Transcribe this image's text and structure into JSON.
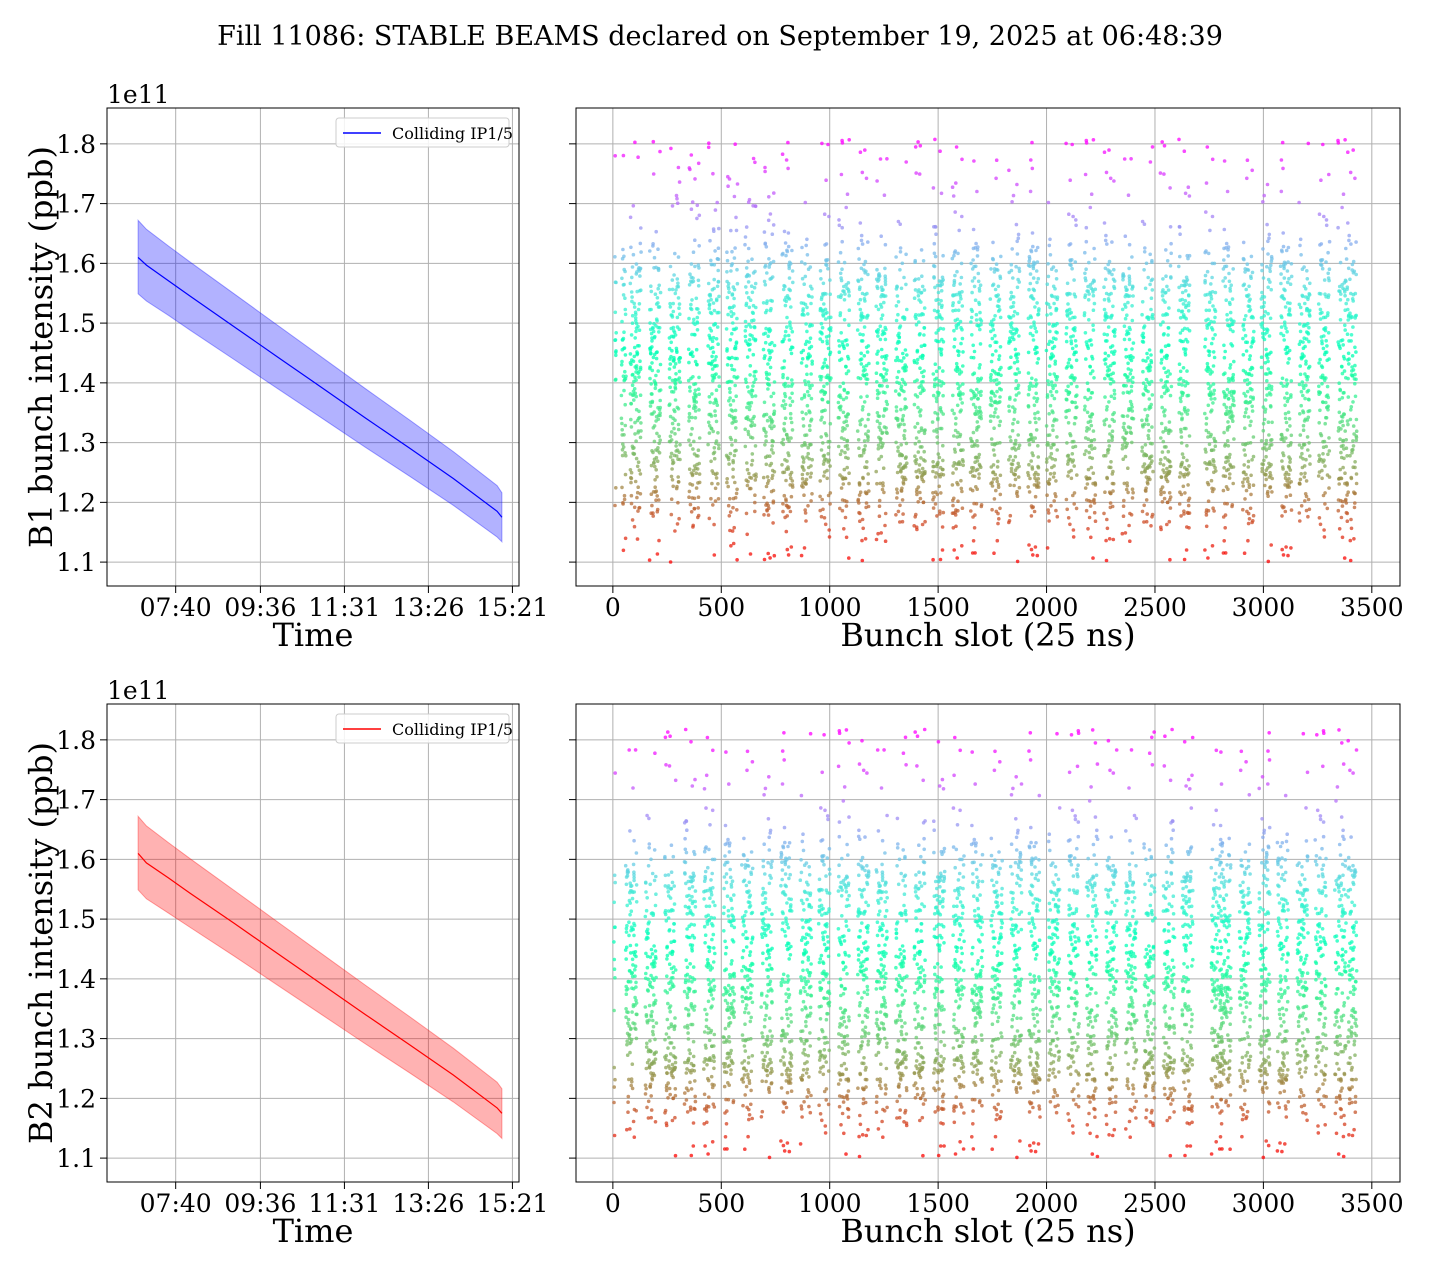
{
  "title": "Fill 11086: STABLE BEAMS declared on September 19, 2025 at 06:48:39",
  "chart_data": [
    {
      "id": "b1-time",
      "type": "line",
      "xlabel": "Time",
      "ylabel": "B1 bunch intensity (ppb)",
      "y_offset_label": "1e11",
      "xticks": [
        "07:40",
        "09:36",
        "11:31",
        "13:26",
        "15:21"
      ],
      "x_hours_at_ticks": [
        7.667,
        9.6,
        11.517,
        13.433,
        15.35
      ],
      "xlim_hours": [
        6.1,
        15.5
      ],
      "yticks": [
        "1.1",
        "1.2",
        "1.3",
        "1.4",
        "1.5",
        "1.6",
        "1.7",
        "1.8"
      ],
      "ylim": [
        1.06,
        1.86
      ],
      "grid": true,
      "legend": {
        "placement": "top-right",
        "entries": [
          "Colliding IP1/5"
        ]
      },
      "color": "#0000ff",
      "series": [
        {
          "name": "Colliding IP1/5",
          "x_hours": [
            6.81,
            7.0,
            7.5,
            8.0,
            9.0,
            10.0,
            11.0,
            12.0,
            13.0,
            14.0,
            15.0,
            15.11
          ],
          "mean": [
            1.61,
            1.597,
            1.571,
            1.545,
            1.494,
            1.443,
            1.392,
            1.341,
            1.291,
            1.24,
            1.185,
            1.175
          ],
          "band_upper": [
            1.672,
            1.657,
            1.629,
            1.602,
            1.549,
            1.496,
            1.443,
            1.39,
            1.338,
            1.285,
            1.228,
            1.216
          ],
          "band_lower": [
            1.549,
            1.537,
            1.513,
            1.488,
            1.439,
            1.39,
            1.341,
            1.292,
            1.244,
            1.195,
            1.142,
            1.134
          ]
        }
      ]
    },
    {
      "id": "b1-slot",
      "type": "scatter",
      "xlabel": "Bunch slot (25 ns)",
      "ylabel": "",
      "xticks": [
        "0",
        "500",
        "1000",
        "1500",
        "2000",
        "2500",
        "3000",
        "3500"
      ],
      "xlim": [
        -170,
        3630
      ],
      "ylim": [
        1.06,
        1.86
      ],
      "grid": true,
      "colormap": "rainbow",
      "color_range": [
        1.1,
        1.8
      ],
      "y_band": [
        1.2,
        1.6
      ],
      "y_spread": 0.05,
      "y_max": 1.81,
      "y_min": 1.1,
      "trains": [
        [
          10,
          15
        ],
        [
          40,
          60
        ],
        [
          80,
          130
        ],
        [
          170,
          220
        ],
        [
          260,
          310
        ],
        [
          350,
          400
        ],
        [
          440,
          490
        ],
        [
          525,
          575
        ],
        [
          610,
          660
        ],
        [
          695,
          745
        ],
        [
          780,
          830
        ],
        [
          870,
          920
        ],
        [
          955,
          1005
        ],
        [
          1040,
          1090
        ],
        [
          1130,
          1180
        ],
        [
          1215,
          1265
        ],
        [
          1305,
          1355
        ],
        [
          1390,
          1440
        ],
        [
          1475,
          1525
        ],
        [
          1565,
          1615
        ],
        [
          1650,
          1700
        ],
        [
          1740,
          1790
        ],
        [
          1825,
          1875
        ],
        [
          1915,
          1965
        ],
        [
          2000,
          2050
        ],
        [
          2090,
          2140
        ],
        [
          2175,
          2225
        ],
        [
          2265,
          2315
        ],
        [
          2350,
          2400
        ],
        [
          2440,
          2490
        ],
        [
          2525,
          2575
        ],
        [
          2610,
          2660
        ],
        [
          2730,
          2780
        ],
        [
          2815,
          2865
        ],
        [
          2905,
          2955
        ],
        [
          2990,
          3040
        ],
        [
          3080,
          3130
        ],
        [
          3165,
          3215
        ],
        [
          3255,
          3305
        ],
        [
          3345,
          3395
        ],
        [
          3400,
          3430
        ]
      ]
    },
    {
      "id": "b2-time",
      "type": "line",
      "xlabel": "Time",
      "ylabel": "B2 bunch intensity (ppb)",
      "y_offset_label": "1e11",
      "xticks": [
        "07:40",
        "09:36",
        "11:31",
        "13:26",
        "15:21"
      ],
      "x_hours_at_ticks": [
        7.667,
        9.6,
        11.517,
        13.433,
        15.35
      ],
      "xlim_hours": [
        6.1,
        15.5
      ],
      "yticks": [
        "1.1",
        "1.2",
        "1.3",
        "1.4",
        "1.5",
        "1.6",
        "1.7",
        "1.8"
      ],
      "ylim": [
        1.06,
        1.86
      ],
      "grid": true,
      "legend": {
        "placement": "top-right",
        "entries": [
          "Colliding IP1/5"
        ]
      },
      "color": "#ff0000",
      "series": [
        {
          "name": "Colliding IP1/5",
          "x_hours": [
            6.81,
            7.0,
            7.5,
            8.0,
            9.0,
            10.0,
            11.0,
            12.0,
            13.0,
            14.0,
            15.0,
            15.11
          ],
          "mean": [
            1.61,
            1.594,
            1.569,
            1.543,
            1.493,
            1.442,
            1.391,
            1.34,
            1.29,
            1.239,
            1.184,
            1.175
          ],
          "band_upper": [
            1.672,
            1.656,
            1.628,
            1.601,
            1.548,
            1.495,
            1.442,
            1.389,
            1.337,
            1.284,
            1.227,
            1.216
          ],
          "band_lower": [
            1.549,
            1.534,
            1.51,
            1.486,
            1.438,
            1.389,
            1.34,
            1.291,
            1.243,
            1.194,
            1.141,
            1.133
          ]
        }
      ]
    },
    {
      "id": "b2-slot",
      "type": "scatter",
      "xlabel": "Bunch slot (25 ns)",
      "ylabel": "",
      "xticks": [
        "0",
        "500",
        "1000",
        "1500",
        "2000",
        "2500",
        "3000",
        "3500"
      ],
      "xlim": [
        -170,
        3630
      ],
      "ylim": [
        1.06,
        1.86
      ],
      "grid": true,
      "colormap": "rainbow",
      "color_range": [
        1.1,
        1.8
      ],
      "y_band": [
        1.2,
        1.6
      ],
      "y_spread": 0.05,
      "y_max": 1.82,
      "y_min": 1.1,
      "trains": [
        [
          5,
          10
        ],
        [
          60,
          110
        ],
        [
          150,
          200
        ],
        [
          240,
          290
        ],
        [
          330,
          380
        ],
        [
          420,
          470
        ],
        [
          510,
          560
        ],
        [
          595,
          645
        ],
        [
          685,
          735
        ],
        [
          775,
          825
        ],
        [
          865,
          915
        ],
        [
          950,
          1000
        ],
        [
          1040,
          1090
        ],
        [
          1130,
          1180
        ],
        [
          1215,
          1265
        ],
        [
          1305,
          1355
        ],
        [
          1390,
          1440
        ],
        [
          1480,
          1530
        ],
        [
          1570,
          1620
        ],
        [
          1655,
          1705
        ],
        [
          1745,
          1795
        ],
        [
          1835,
          1885
        ],
        [
          1920,
          1970
        ],
        [
          2010,
          2060
        ],
        [
          2100,
          2150
        ],
        [
          2185,
          2235
        ],
        [
          2275,
          2325
        ],
        [
          2365,
          2415
        ],
        [
          2450,
          2500
        ],
        [
          2540,
          2590
        ],
        [
          2625,
          2675
        ],
        [
          2760,
          2810
        ],
        [
          2800,
          2850
        ],
        [
          2890,
          2940
        ],
        [
          2980,
          3030
        ],
        [
          3065,
          3115
        ],
        [
          3155,
          3205
        ],
        [
          3240,
          3290
        ],
        [
          3330,
          3380
        ],
        [
          3390,
          3430
        ]
      ]
    }
  ]
}
